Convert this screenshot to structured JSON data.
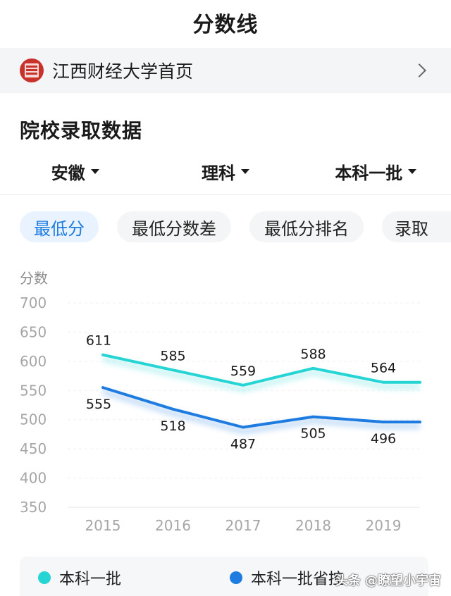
{
  "page": {
    "title": "分数线"
  },
  "school": {
    "name": "江西财经大学首页"
  },
  "section": {
    "title": "院校录取数据"
  },
  "filters": [
    {
      "label": "安徽"
    },
    {
      "label": "理科"
    },
    {
      "label": "本科一批"
    }
  ],
  "tabs": [
    {
      "label": "最低分",
      "active": true
    },
    {
      "label": "最低分数差",
      "active": false
    },
    {
      "label": "最低分排名",
      "active": false
    },
    {
      "label": "录取",
      "active": false
    }
  ],
  "chart_data": {
    "type": "line",
    "ylabel": "分数",
    "ylim": [
      350,
      700
    ],
    "yticks": [
      700,
      650,
      600,
      550,
      500,
      450,
      400,
      350
    ],
    "categories": [
      "2015",
      "2016",
      "2017",
      "2018",
      "2019"
    ],
    "series": [
      {
        "name": "本科一批",
        "color": "#26d4d4",
        "values": [
          611,
          585,
          559,
          588,
          564
        ]
      },
      {
        "name": "本科一批省控",
        "color": "#1e7be0",
        "values": [
          555,
          518,
          487,
          505,
          496
        ]
      }
    ],
    "grid": true,
    "legend": "bottom"
  },
  "watermark": "头条 @瞭望小宇宙"
}
